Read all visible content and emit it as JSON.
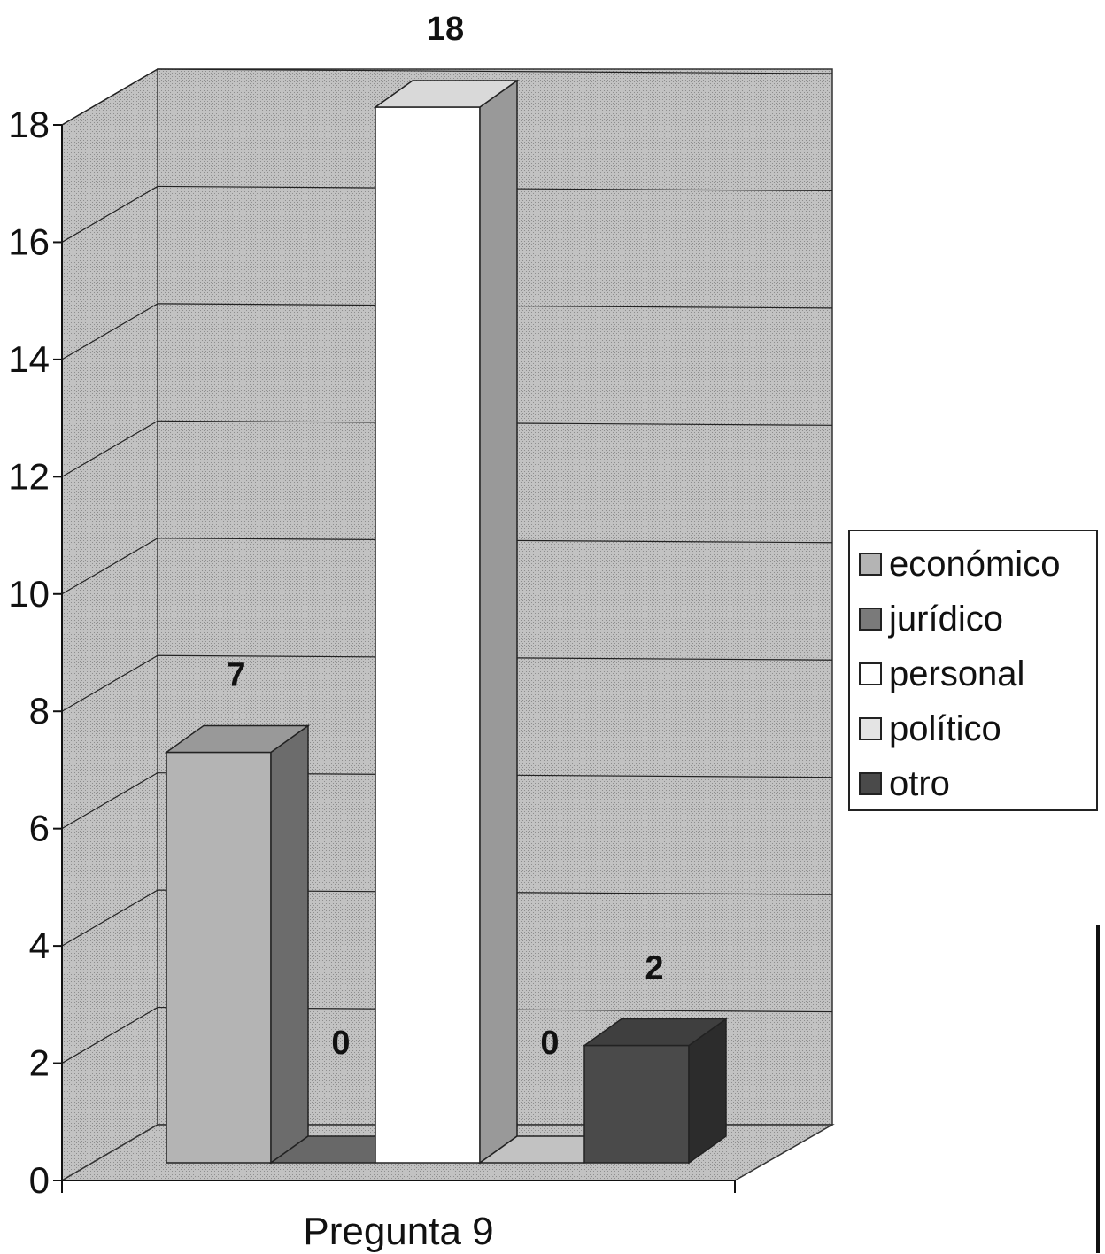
{
  "chart_data": {
    "type": "bar",
    "categories": [
      "Pregunta 9"
    ],
    "series": [
      {
        "name": "económico",
        "values": [
          7
        ],
        "color": "#b4b4b4"
      },
      {
        "name": "jurídico",
        "values": [
          0
        ],
        "color": "#7a7a7a"
      },
      {
        "name": "personal",
        "values": [
          18
        ],
        "color": "#ffffff"
      },
      {
        "name": "político",
        "values": [
          0
        ],
        "color": "#e4e4e4"
      },
      {
        "name": "otro",
        "values": [
          2
        ],
        "color": "#4a4a4a"
      }
    ],
    "data_labels": [
      "7",
      "0",
      "18",
      "0",
      "2"
    ],
    "y_ticks": [
      "0",
      "2",
      "4",
      "6",
      "8",
      "10",
      "12",
      "14",
      "16",
      "18"
    ],
    "ylim": [
      0,
      18
    ],
    "xlabel": "Pregunta 9",
    "ylabel": "",
    "title": "",
    "grid": true,
    "legend_position": "right",
    "style": "3d-columns",
    "wall_color": "#b9b9b9"
  }
}
